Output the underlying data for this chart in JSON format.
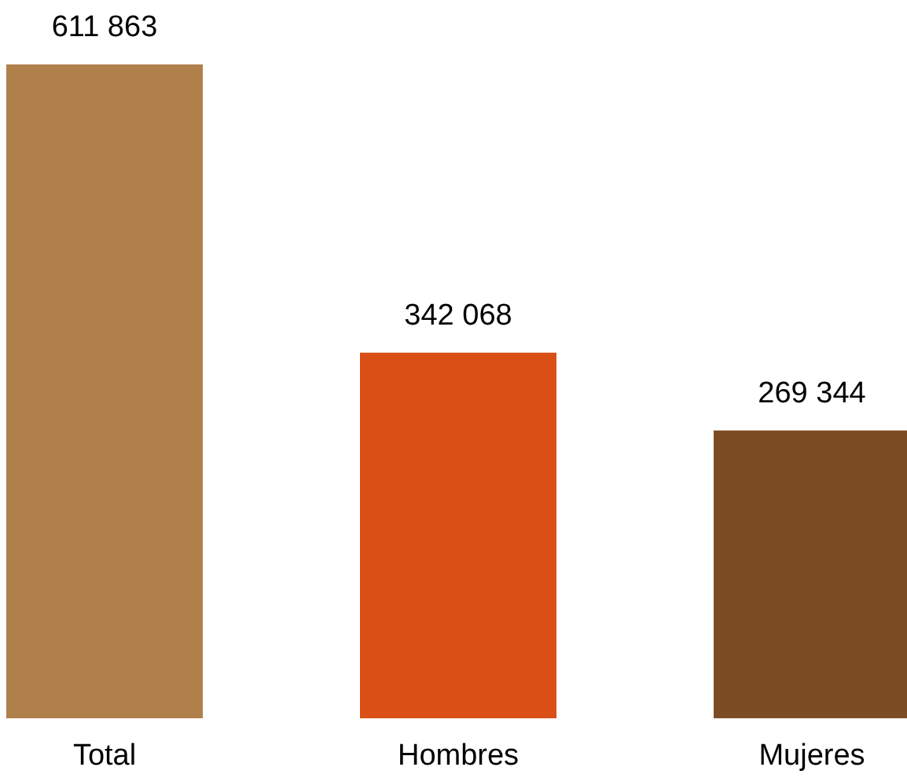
{
  "chart_data": {
    "type": "bar",
    "categories": [
      "Total",
      "Hombres",
      "Mujeres"
    ],
    "values": [
      611863,
      342068,
      269344
    ],
    "colors": [
      "#b0804a",
      "#d94f16",
      "#7c4d24"
    ],
    "value_labels": [
      "611 863",
      "342 068",
      "269 344"
    ]
  }
}
